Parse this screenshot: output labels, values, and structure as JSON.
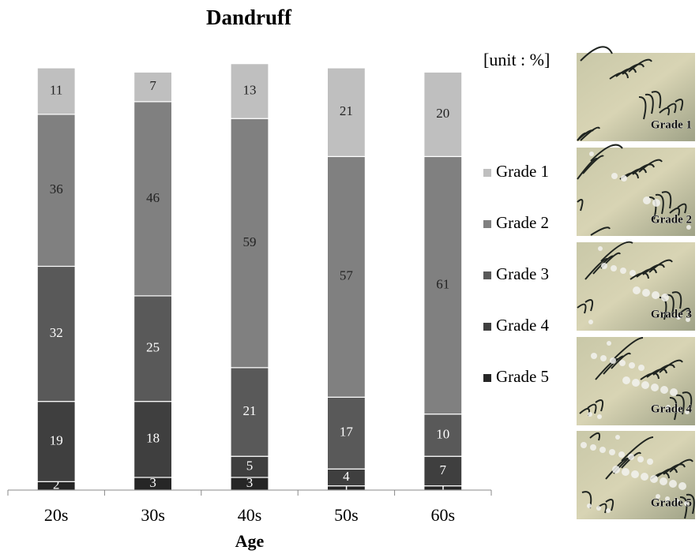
{
  "chart_data": {
    "type": "stacked_bar",
    "title": "Dandruff",
    "x_label": "Age",
    "unit_note": "[unit : %]",
    "categories": [
      "20s",
      "30s",
      "40s",
      "50s",
      "60s"
    ],
    "series": [
      {
        "name": "Grade 1",
        "color": "#bfbfbf",
        "label_color": "#222222",
        "values": [
          11,
          7,
          13,
          21,
          20
        ]
      },
      {
        "name": "Grade 2",
        "color": "#808080",
        "label_color": "#222222",
        "values": [
          36,
          46,
          59,
          57,
          61
        ]
      },
      {
        "name": "Grade 3",
        "color": "#595959",
        "label_color": "#ffffff",
        "values": [
          32,
          25,
          21,
          17,
          10
        ]
      },
      {
        "name": "Grade 4",
        "color": "#3f3f3f",
        "label_color": "#ffffff",
        "values": [
          19,
          18,
          5,
          4,
          7
        ]
      },
      {
        "name": "Grade 5",
        "color": "#262626",
        "label_color": "#ffffff",
        "values": [
          2,
          3,
          3,
          1,
          1
        ]
      }
    ],
    "ylim": [
      0,
      100
    ]
  }
}
